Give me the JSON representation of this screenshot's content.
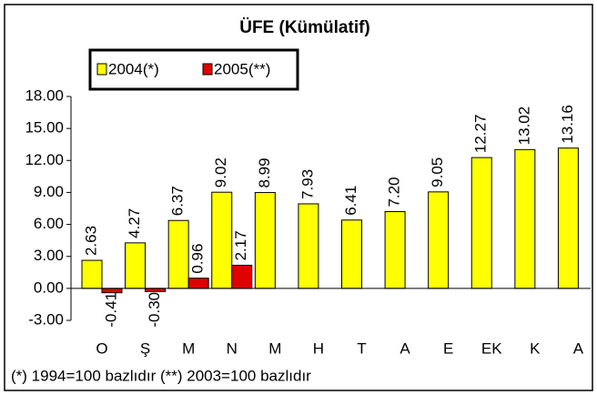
{
  "chart_data": {
    "type": "bar",
    "title": "ÜFE (Kümülatif)",
    "note": "(*) 1994=100 bazlıdır (**) 2003=100 bazlıdır",
    "categories": [
      "O",
      "Ş",
      "M",
      "N",
      "M",
      "H",
      "T",
      "A",
      "E",
      "EK",
      "K",
      "A"
    ],
    "series": [
      {
        "name": "2004(*)",
        "color": "#ffff00",
        "values": [
          2.63,
          4.27,
          6.37,
          9.02,
          8.99,
          7.93,
          6.41,
          7.2,
          9.05,
          12.27,
          13.02,
          13.16
        ],
        "value_labels": [
          "2.63",
          "4.27",
          "6.37",
          "9.02",
          "8.99",
          "7.93",
          "6.41",
          "7.20",
          "9.05",
          "12.27",
          "13.02",
          "13.16"
        ]
      },
      {
        "name": "2005(**)",
        "color": "#e00000",
        "values": [
          -0.41,
          -0.3,
          0.96,
          2.17,
          null,
          null,
          null,
          null,
          null,
          null,
          null,
          null
        ],
        "value_labels": [
          "-0.41",
          "-0.30",
          "0.96",
          "2.17",
          null,
          null,
          null,
          null,
          null,
          null,
          null,
          null
        ]
      }
    ],
    "ylim": [
      -3,
      18
    ],
    "yticks": [
      {
        "value": -3,
        "label": "-3.00"
      },
      {
        "value": 0,
        "label": "0.00"
      },
      {
        "value": 3,
        "label": "3.00"
      },
      {
        "value": 6,
        "label": "6.00"
      },
      {
        "value": 9,
        "label": "9.00"
      },
      {
        "value": 12,
        "label": "12.00"
      },
      {
        "value": 15,
        "label": "15.00"
      },
      {
        "value": 18,
        "label": "18.00"
      }
    ],
    "legend": "top-left"
  }
}
